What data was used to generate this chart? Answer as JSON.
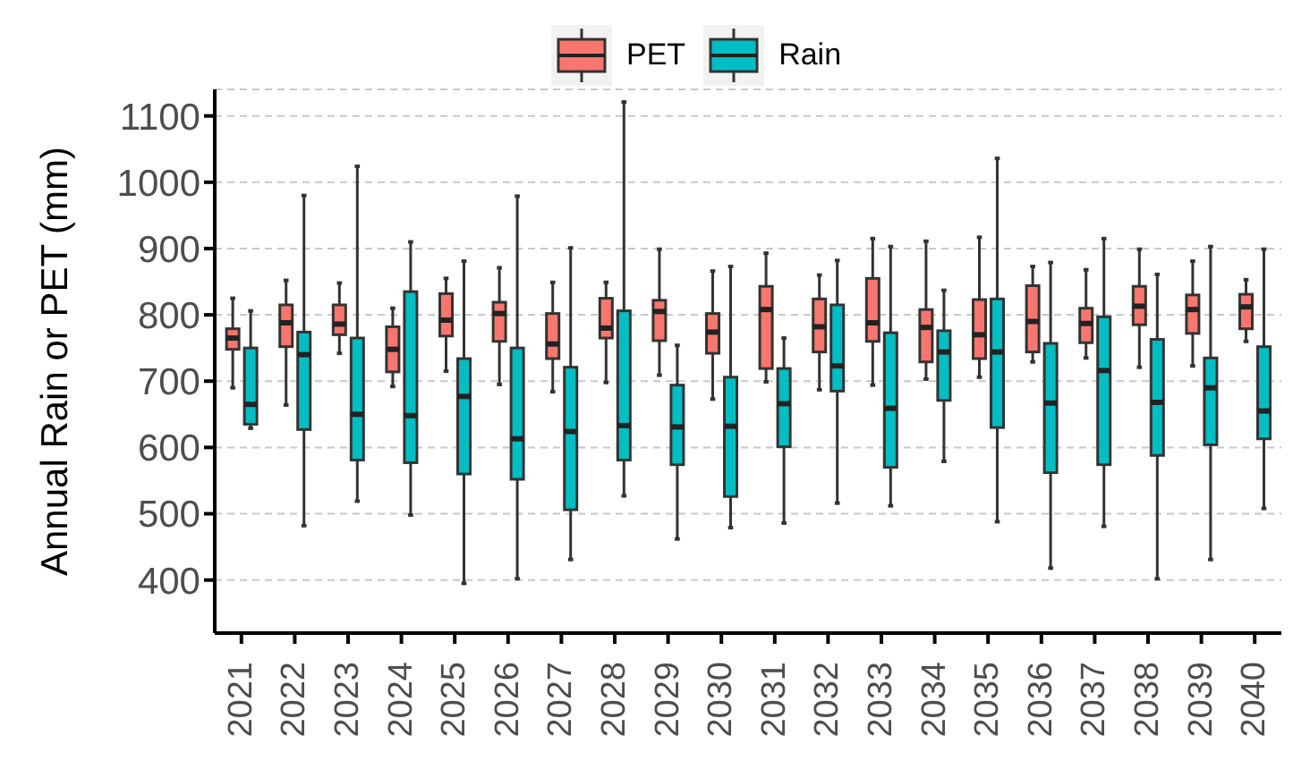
{
  "chart_data": {
    "type": "box",
    "ylabel": "Annual Rain or PET (mm)",
    "categories": [
      "2021",
      "2022",
      "2023",
      "2024",
      "2025",
      "2026",
      "2027",
      "2028",
      "2029",
      "2030",
      "2031",
      "2032",
      "2033",
      "2034",
      "2035",
      "2036",
      "2037",
      "2038",
      "2039",
      "2040"
    ],
    "ylim": [
      320,
      1140
    ],
    "yticks": [
      400,
      500,
      600,
      700,
      800,
      900,
      1000,
      1100
    ],
    "grid": "y",
    "legend": "top",
    "series": [
      {
        "name": "PET",
        "color": "#f8766d",
        "boxes": [
          {
            "low": 690,
            "q1": 748,
            "median": 765,
            "q3": 779,
            "high": 825
          },
          {
            "low": 664,
            "q1": 752,
            "median": 788,
            "q3": 815,
            "high": 852
          },
          {
            "low": 742,
            "q1": 770,
            "median": 786,
            "q3": 815,
            "high": 848
          },
          {
            "low": 692,
            "q1": 714,
            "median": 748,
            "q3": 782,
            "high": 810
          },
          {
            "low": 715,
            "q1": 768,
            "median": 792,
            "q3": 832,
            "high": 855
          },
          {
            "low": 695,
            "q1": 760,
            "median": 802,
            "q3": 819,
            "high": 871
          },
          {
            "low": 684,
            "q1": 734,
            "median": 756,
            "q3": 802,
            "high": 849
          },
          {
            "low": 698,
            "q1": 765,
            "median": 780,
            "q3": 825,
            "high": 849
          },
          {
            "low": 709,
            "q1": 761,
            "median": 805,
            "q3": 822,
            "high": 899
          },
          {
            "low": 673,
            "q1": 742,
            "median": 774,
            "q3": 802,
            "high": 866
          },
          {
            "low": 699,
            "q1": 719,
            "median": 808,
            "q3": 843,
            "high": 893
          },
          {
            "low": 687,
            "q1": 744,
            "median": 782,
            "q3": 824,
            "high": 860
          },
          {
            "low": 694,
            "q1": 760,
            "median": 788,
            "q3": 855,
            "high": 915
          },
          {
            "low": 703,
            "q1": 729,
            "median": 781,
            "q3": 808,
            "high": 911
          },
          {
            "low": 706,
            "q1": 734,
            "median": 770,
            "q3": 823,
            "high": 917
          },
          {
            "low": 729,
            "q1": 744,
            "median": 790,
            "q3": 844,
            "high": 873
          },
          {
            "low": 735,
            "q1": 758,
            "median": 787,
            "q3": 810,
            "high": 868
          },
          {
            "low": 721,
            "q1": 785,
            "median": 813,
            "q3": 843,
            "high": 899
          },
          {
            "low": 723,
            "q1": 772,
            "median": 808,
            "q3": 830,
            "high": 881
          },
          {
            "low": 760,
            "q1": 779,
            "median": 812,
            "q3": 831,
            "high": 853
          }
        ]
      },
      {
        "name": "Rain",
        "color": "#00bfc4",
        "boxes": [
          {
            "low": 629,
            "q1": 635,
            "median": 665,
            "q3": 750,
            "high": 806
          },
          {
            "low": 482,
            "q1": 627,
            "median": 740,
            "q3": 774,
            "high": 980
          },
          {
            "low": 519,
            "q1": 581,
            "median": 650,
            "q3": 765,
            "high": 1024
          },
          {
            "low": 498,
            "q1": 577,
            "median": 648,
            "q3": 835,
            "high": 910
          },
          {
            "low": 395,
            "q1": 560,
            "median": 677,
            "q3": 734,
            "high": 881
          },
          {
            "low": 402,
            "q1": 552,
            "median": 613,
            "q3": 750,
            "high": 979
          },
          {
            "low": 431,
            "q1": 506,
            "median": 624,
            "q3": 721,
            "high": 901
          },
          {
            "low": 527,
            "q1": 581,
            "median": 633,
            "q3": 806,
            "high": 1121
          },
          {
            "low": 462,
            "q1": 574,
            "median": 631,
            "q3": 694,
            "high": 754
          },
          {
            "low": 479,
            "q1": 526,
            "median": 632,
            "q3": 706,
            "high": 873
          },
          {
            "low": 486,
            "q1": 601,
            "median": 666,
            "q3": 719,
            "high": 765
          },
          {
            "low": 516,
            "q1": 685,
            "median": 723,
            "q3": 815,
            "high": 882
          },
          {
            "low": 512,
            "q1": 570,
            "median": 659,
            "q3": 773,
            "high": 903
          },
          {
            "low": 579,
            "q1": 671,
            "median": 744,
            "q3": 776,
            "high": 837
          },
          {
            "low": 488,
            "q1": 630,
            "median": 744,
            "q3": 824,
            "high": 1036
          },
          {
            "low": 418,
            "q1": 562,
            "median": 667,
            "q3": 757,
            "high": 879
          },
          {
            "low": 481,
            "q1": 574,
            "median": 716,
            "q3": 797,
            "high": 915
          },
          {
            "low": 402,
            "q1": 588,
            "median": 668,
            "q3": 763,
            "high": 861
          },
          {
            "low": 431,
            "q1": 604,
            "median": 690,
            "q3": 735,
            "high": 903
          },
          {
            "low": 508,
            "q1": 613,
            "median": 655,
            "q3": 752,
            "high": 899
          }
        ]
      }
    ]
  }
}
